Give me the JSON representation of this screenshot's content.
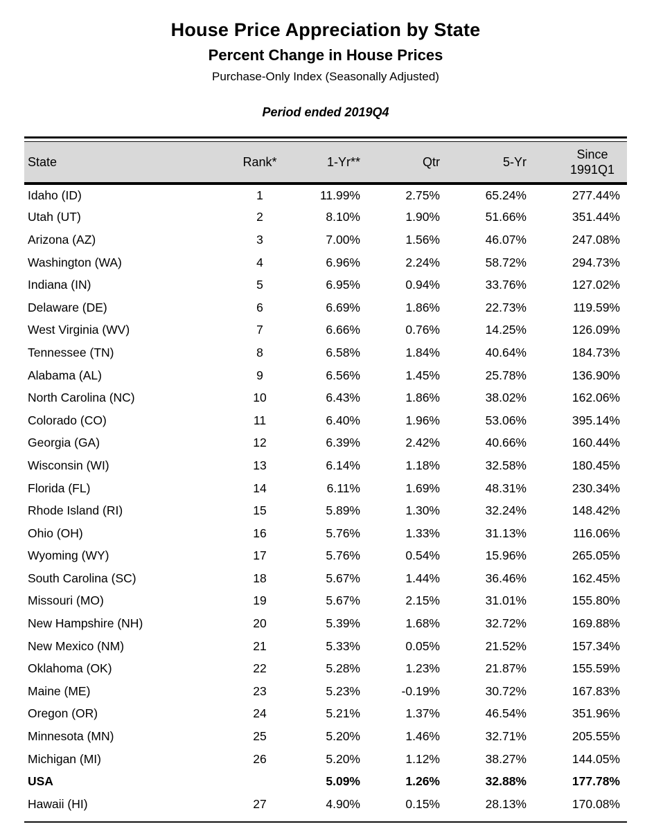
{
  "title": "House Price Appreciation by State",
  "subtitle": "Percent Change in House Prices",
  "index_line": "Purchase-Only Index (Seasonally Adjusted)",
  "period": "Period ended 2019Q4",
  "colors": {
    "header_background": "#d9d9d9",
    "rule": "#000000",
    "text": "#000000"
  },
  "table": {
    "columns": [
      "State",
      "Rank*",
      "1-Yr**",
      "Qtr",
      "5-Yr",
      "Since 1991Q1"
    ],
    "rows": [
      {
        "state": "Idaho (ID)",
        "rank": "1",
        "yr1": "11.99%",
        "qtr": "2.75%",
        "yr5": "65.24%",
        "since": "277.44%",
        "bold": false
      },
      {
        "state": "Utah (UT)",
        "rank": "2",
        "yr1": "8.10%",
        "qtr": "1.90%",
        "yr5": "51.66%",
        "since": "351.44%",
        "bold": false
      },
      {
        "state": "Arizona (AZ)",
        "rank": "3",
        "yr1": "7.00%",
        "qtr": "1.56%",
        "yr5": "46.07%",
        "since": "247.08%",
        "bold": false
      },
      {
        "state": "Washington (WA)",
        "rank": "4",
        "yr1": "6.96%",
        "qtr": "2.24%",
        "yr5": "58.72%",
        "since": "294.73%",
        "bold": false
      },
      {
        "state": "Indiana (IN)",
        "rank": "5",
        "yr1": "6.95%",
        "qtr": "0.94%",
        "yr5": "33.76%",
        "since": "127.02%",
        "bold": false
      },
      {
        "state": "Delaware (DE)",
        "rank": "6",
        "yr1": "6.69%",
        "qtr": "1.86%",
        "yr5": "22.73%",
        "since": "119.59%",
        "bold": false
      },
      {
        "state": "West Virginia (WV)",
        "rank": "7",
        "yr1": "6.66%",
        "qtr": "0.76%",
        "yr5": "14.25%",
        "since": "126.09%",
        "bold": false
      },
      {
        "state": "Tennessee (TN)",
        "rank": "8",
        "yr1": "6.58%",
        "qtr": "1.84%",
        "yr5": "40.64%",
        "since": "184.73%",
        "bold": false
      },
      {
        "state": "Alabama (AL)",
        "rank": "9",
        "yr1": "6.56%",
        "qtr": "1.45%",
        "yr5": "25.78%",
        "since": "136.90%",
        "bold": false
      },
      {
        "state": "North Carolina (NC)",
        "rank": "10",
        "yr1": "6.43%",
        "qtr": "1.86%",
        "yr5": "38.02%",
        "since": "162.06%",
        "bold": false
      },
      {
        "state": "Colorado (CO)",
        "rank": "11",
        "yr1": "6.40%",
        "qtr": "1.96%",
        "yr5": "53.06%",
        "since": "395.14%",
        "bold": false
      },
      {
        "state": "Georgia (GA)",
        "rank": "12",
        "yr1": "6.39%",
        "qtr": "2.42%",
        "yr5": "40.66%",
        "since": "160.44%",
        "bold": false
      },
      {
        "state": "Wisconsin (WI)",
        "rank": "13",
        "yr1": "6.14%",
        "qtr": "1.18%",
        "yr5": "32.58%",
        "since": "180.45%",
        "bold": false
      },
      {
        "state": "Florida (FL)",
        "rank": "14",
        "yr1": "6.11%",
        "qtr": "1.69%",
        "yr5": "48.31%",
        "since": "230.34%",
        "bold": false
      },
      {
        "state": "Rhode Island (RI)",
        "rank": "15",
        "yr1": "5.89%",
        "qtr": "1.30%",
        "yr5": "32.24%",
        "since": "148.42%",
        "bold": false
      },
      {
        "state": "Ohio (OH)",
        "rank": "16",
        "yr1": "5.76%",
        "qtr": "1.33%",
        "yr5": "31.13%",
        "since": "116.06%",
        "bold": false
      },
      {
        "state": "Wyoming (WY)",
        "rank": "17",
        "yr1": "5.76%",
        "qtr": "0.54%",
        "yr5": "15.96%",
        "since": "265.05%",
        "bold": false
      },
      {
        "state": "South Carolina (SC)",
        "rank": "18",
        "yr1": "5.67%",
        "qtr": "1.44%",
        "yr5": "36.46%",
        "since": "162.45%",
        "bold": false
      },
      {
        "state": "Missouri (MO)",
        "rank": "19",
        "yr1": "5.67%",
        "qtr": "2.15%",
        "yr5": "31.01%",
        "since": "155.80%",
        "bold": false
      },
      {
        "state": "New Hampshire (NH)",
        "rank": "20",
        "yr1": "5.39%",
        "qtr": "1.68%",
        "yr5": "32.72%",
        "since": "169.88%",
        "bold": false
      },
      {
        "state": "New Mexico (NM)",
        "rank": "21",
        "yr1": "5.33%",
        "qtr": "0.05%",
        "yr5": "21.52%",
        "since": "157.34%",
        "bold": false
      },
      {
        "state": "Oklahoma (OK)",
        "rank": "22",
        "yr1": "5.28%",
        "qtr": "1.23%",
        "yr5": "21.87%",
        "since": "155.59%",
        "bold": false
      },
      {
        "state": "Maine (ME)",
        "rank": "23",
        "yr1": "5.23%",
        "qtr": "-0.19%",
        "yr5": "30.72%",
        "since": "167.83%",
        "bold": false
      },
      {
        "state": "Oregon (OR)",
        "rank": "24",
        "yr1": "5.21%",
        "qtr": "1.37%",
        "yr5": "46.54%",
        "since": "351.96%",
        "bold": false
      },
      {
        "state": "Minnesota (MN)",
        "rank": "25",
        "yr1": "5.20%",
        "qtr": "1.46%",
        "yr5": "32.71%",
        "since": "205.55%",
        "bold": false
      },
      {
        "state": "Michigan (MI)",
        "rank": "26",
        "yr1": "5.20%",
        "qtr": "1.12%",
        "yr5": "38.27%",
        "since": "144.05%",
        "bold": false
      },
      {
        "state": "USA",
        "rank": "",
        "yr1": "5.09%",
        "qtr": "1.26%",
        "yr5": "32.88%",
        "since": "177.78%",
        "bold": true
      },
      {
        "state": "Hawaii (HI)",
        "rank": "27",
        "yr1": "4.90%",
        "qtr": "0.15%",
        "yr5": "28.13%",
        "since": "170.08%",
        "bold": false
      }
    ]
  }
}
